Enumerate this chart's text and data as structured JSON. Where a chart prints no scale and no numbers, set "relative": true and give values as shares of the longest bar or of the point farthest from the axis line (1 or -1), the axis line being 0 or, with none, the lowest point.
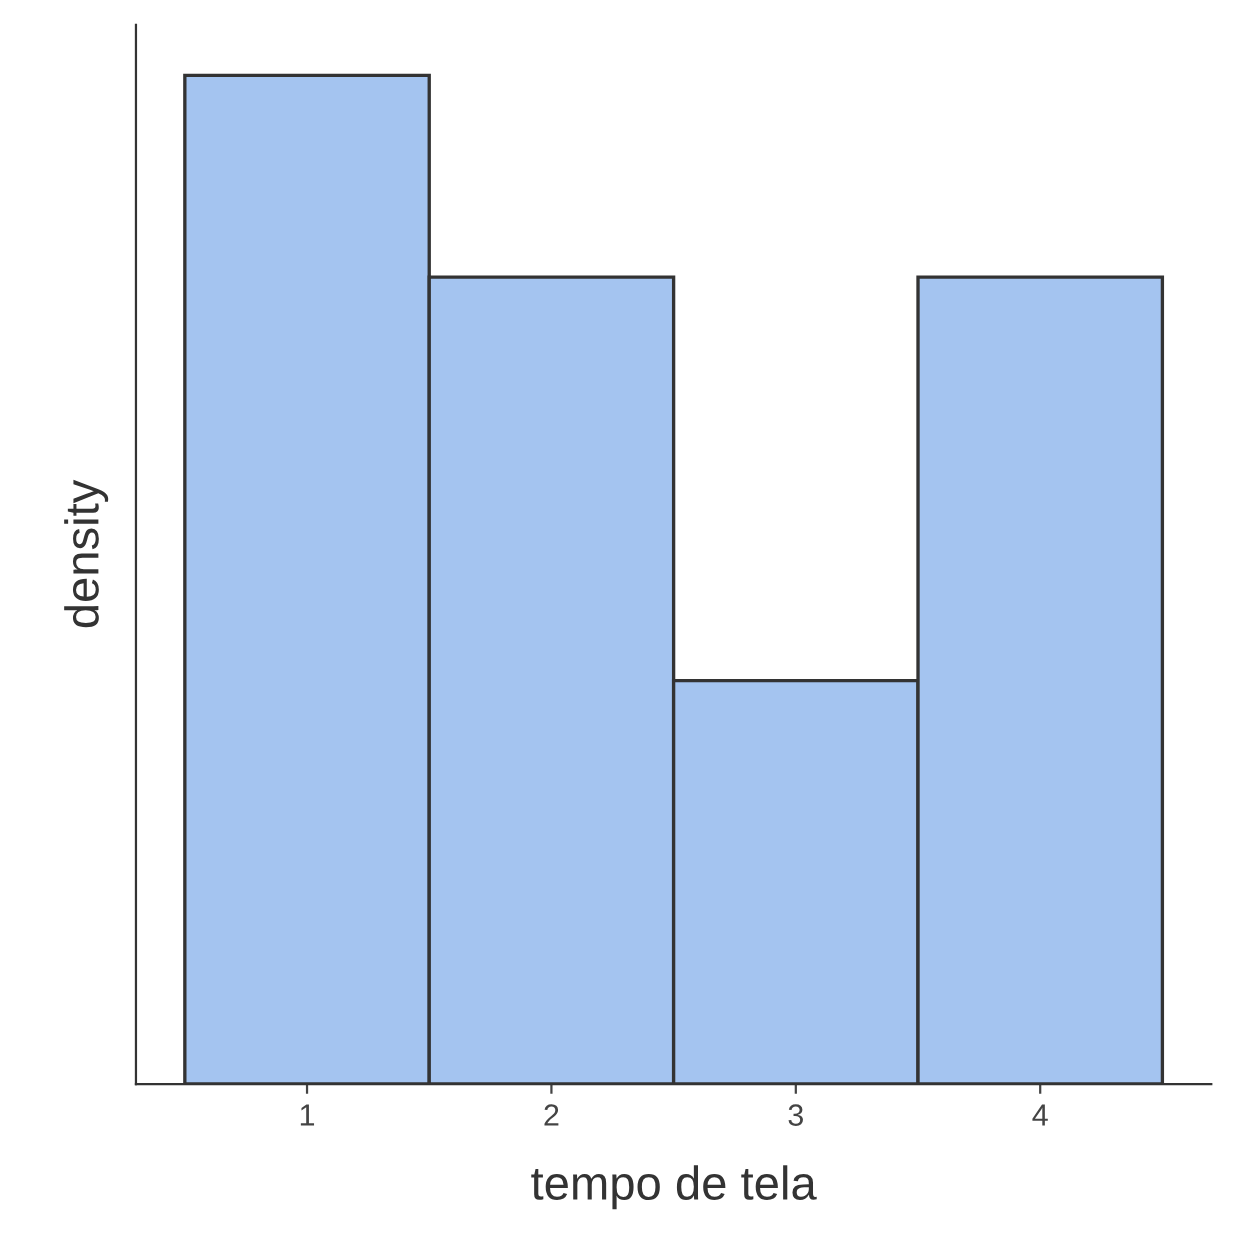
{
  "chart_data": {
    "type": "bar",
    "xlabel": "tempo de tela",
    "ylabel": "density",
    "categories": [
      "1",
      "2",
      "3",
      "4"
    ],
    "values": [
      1,
      0.8,
      0.4,
      0.8
    ],
    "color": "#a4c4f0",
    "relative": true,
    "grid": false
  }
}
